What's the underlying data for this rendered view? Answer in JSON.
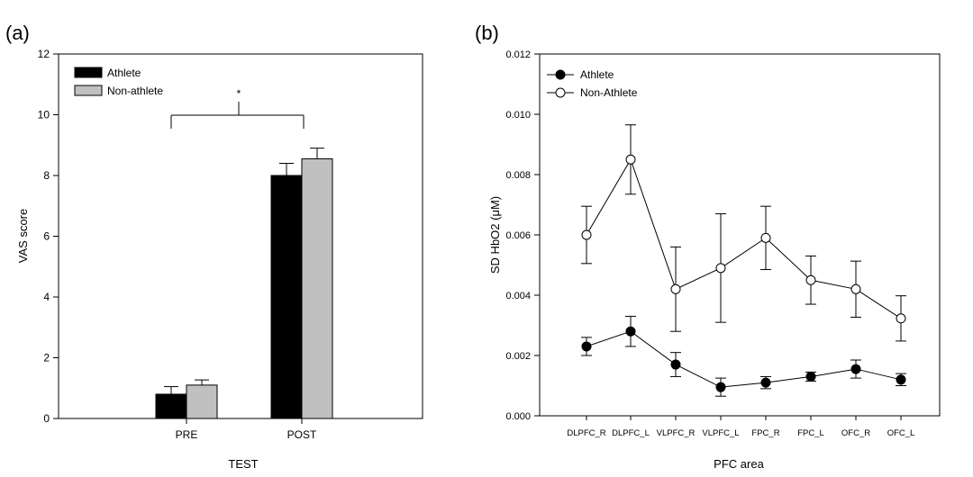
{
  "panels": {
    "a": {
      "label": "(a)"
    },
    "b": {
      "label": "(b)"
    }
  },
  "colors": {
    "athlete_bar": "#000000",
    "nonathlete_bar": "#c0c0c0",
    "axis": "#000000",
    "athlete_marker": "#000000",
    "nonathlete_marker": "#ffffff"
  },
  "chart_data": [
    {
      "type": "bar",
      "title": "",
      "xlabel": "TEST",
      "ylabel": "VAS score",
      "categories": [
        "PRE",
        "POST"
      ],
      "ylim": [
        0,
        12
      ],
      "yticks": [
        0,
        2,
        4,
        6,
        8,
        10,
        12
      ],
      "legend": "top-left",
      "grid": false,
      "series": [
        {
          "name": "Athlete",
          "values": [
            0.8,
            8.0
          ],
          "errors": [
            0.25,
            0.4
          ]
        },
        {
          "name": "Non-athlete",
          "values": [
            1.1,
            8.55
          ],
          "errors": [
            0.17,
            0.35
          ]
        }
      ],
      "annotations": [
        {
          "text": "*",
          "between": [
            "PRE",
            "POST"
          ]
        }
      ]
    },
    {
      "type": "line",
      "title": "",
      "xlabel": "PFC area",
      "ylabel": "SD HbO2 (μM)",
      "categories": [
        "DLPFC_R",
        "DLPFC_L",
        "VLPFC_R",
        "VLPFC_L",
        "FPC_R",
        "FPC_L",
        "OFC_R",
        "OFC_L"
      ],
      "ylim": [
        0,
        0.012
      ],
      "yticks": [
        "0.000",
        "0.002",
        "0.004",
        "0.006",
        "0.008",
        "0.010",
        "0.012"
      ],
      "legend": "top-left",
      "grid": false,
      "series": [
        {
          "name": "Athlete",
          "marker": "filled-circle",
          "values": [
            0.0023,
            0.0028,
            0.0017,
            0.00095,
            0.0011,
            0.0013,
            0.00155,
            0.0012
          ],
          "errors": [
            0.0003,
            0.0005,
            0.0004,
            0.0003,
            0.0002,
            0.00015,
            0.0003,
            0.0002
          ]
        },
        {
          "name": "Non-Athlete",
          "marker": "open-circle",
          "values": [
            0.006,
            0.0085,
            0.0042,
            0.0049,
            0.0059,
            0.0045,
            0.0042,
            0.00323
          ],
          "errors": [
            0.00095,
            0.00115,
            0.0014,
            0.0018,
            0.00105,
            0.0008,
            0.00093,
            0.00075
          ]
        }
      ]
    }
  ]
}
